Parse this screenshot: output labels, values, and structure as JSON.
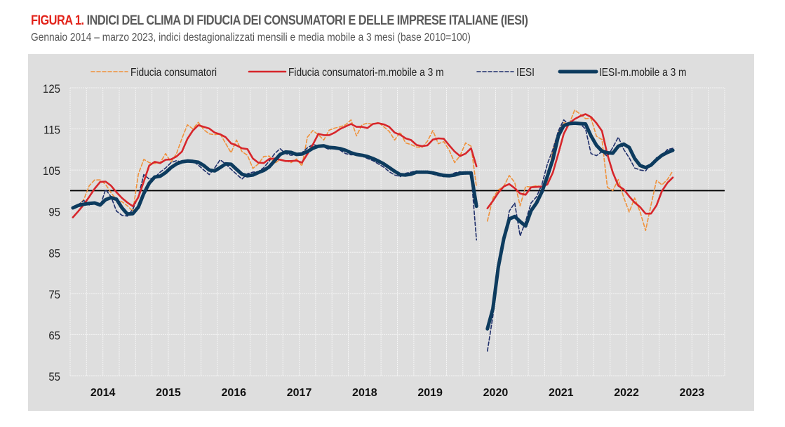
{
  "header": {
    "figure_label": "FIGURA 1.",
    "title": " INDICI DEL CLIMA DI FIDUCIA DEI CONSUMATORI E DELLE IMPRESE ITALIANE (IESI)",
    "subtitle": "Gennaio 2014 – marzo 2023, indici destagionalizzati mensili e media mobile a 3 mesi (base 2010=100)"
  },
  "colors": {
    "figure_label": "#e2231a",
    "consumer": "#f0913a",
    "consumer_ma": "#d7262b",
    "iesi": "#1f2f6b",
    "iesi_ma": "#0d3b5e",
    "background": "#dedede",
    "reference_line": "#000000"
  },
  "chart_data": {
    "type": "line",
    "title": "INDICI DEL CLIMA DI FIDUCIA DEI CONSUMATORI E DELLE IMPRESE ITALIANE (IESI)",
    "x_start": "2014-01",
    "x_end": "2023-03",
    "x_frequency": "monthly",
    "x_tick_labels": [
      "2014",
      "2015",
      "2016",
      "2017",
      "2018",
      "2019",
      "2020",
      "2021",
      "2022",
      "2023"
    ],
    "y_tick_labels": [
      "125",
      "115",
      "105",
      "95",
      "85",
      "75",
      "65",
      "55"
    ],
    "ylim": [
      55,
      125
    ],
    "reference_line": 100,
    "grid": true,
    "legend_position": "top",
    "series": [
      {
        "name": "Fiducia consumatori",
        "style": "dashed",
        "values": [
          95.6,
          96.4,
          97.8,
          101.2,
          102.6,
          102.6,
          101.5,
          99.5,
          97.8,
          97.3,
          96.3,
          95.0,
          104.0,
          107.6,
          106.8,
          106.6,
          106.8,
          109.0,
          106.9,
          109.0,
          112.7,
          116.0,
          115.0,
          116.6,
          114.8,
          113.8,
          113.6,
          113.8,
          111.5,
          109.2,
          112.3,
          109.5,
          108.6,
          105.4,
          106.5,
          108.3,
          108.4,
          106.6,
          107.6,
          107.3,
          106.8,
          107.7,
          106.0,
          113.0,
          114.6,
          113.6,
          112.3,
          114.7,
          115.2,
          115.5,
          116.0,
          117.2,
          113.3,
          116.0,
          116.4,
          116.1,
          116.6,
          115.5,
          114.4,
          112.3,
          114.2,
          111.6,
          111.2,
          110.6,
          110.5,
          112.0,
          114.6,
          111.4,
          111.9,
          109.8,
          106.8,
          108.5,
          111.6,
          110.8,
          100.9,
          null,
          92.6,
          98.2,
          100.2,
          101.0,
          103.7,
          102.0,
          96.3,
          101.0,
          100.9,
          101.2,
          100.9,
          102.3,
          110.0,
          114.2,
          116.5,
          116.2,
          119.6,
          118.6,
          117.5,
          117.6,
          113.2,
          112.4,
          100.8,
          100.0,
          102.7,
          98.3,
          94.8,
          98.2,
          94.8,
          90.3,
          96.5,
          102.5,
          101.4,
          102.7,
          104.8
        ]
      },
      {
        "name": "Fiducia consumatori-m.mobile a 3 m",
        "style": "solid",
        "values": [
          93.5,
          95.0,
          96.6,
          98.5,
          100.5,
          102.1,
          102.2,
          101.2,
          99.6,
          98.2,
          97.1,
          96.2,
          98.4,
          102.2,
          106.1,
          107.0,
          106.7,
          107.5,
          107.6,
          108.3,
          109.5,
          112.6,
          114.6,
          115.9,
          115.5,
          115.1,
          114.1,
          113.7,
          113.0,
          111.5,
          111.0,
          110.3,
          110.1,
          107.8,
          106.8,
          106.7,
          107.7,
          107.8,
          107.5,
          107.2,
          107.2,
          107.3,
          106.8,
          108.9,
          111.2,
          113.8,
          113.5,
          113.5,
          114.1,
          115.0,
          115.6,
          116.2,
          115.5,
          115.5,
          115.2,
          116.2,
          116.4,
          116.1,
          115.5,
          114.1,
          113.6,
          112.7,
          112.3,
          111.1,
          110.8,
          111.0,
          112.4,
          112.7,
          112.6,
          111.0,
          109.5,
          108.4,
          109.0,
          110.3,
          105.9,
          null,
          95.7,
          97.5,
          99.5,
          101.0,
          101.6,
          100.6,
          99.3,
          99.0,
          100.8,
          100.9,
          101.0,
          101.5,
          104.4,
          109.0,
          113.8,
          116.4,
          117.4,
          118.1,
          118.6,
          117.9,
          116.4,
          114.5,
          108.8,
          104.4,
          101.2,
          100.3,
          98.6,
          97.1,
          96.0,
          94.4,
          94.4,
          96.4,
          99.9,
          101.9,
          103.2
        ]
      },
      {
        "name": "IESI",
        "style": "dashed",
        "values": [
          95.8,
          96.6,
          97.6,
          96.5,
          96.8,
          96.2,
          100.3,
          98.5,
          95.0,
          94.0,
          93.8,
          95.5,
          98.6,
          103.9,
          102.8,
          103.2,
          104.5,
          105.5,
          106.8,
          107.3,
          106.9,
          107.3,
          107.2,
          106.2,
          105.0,
          103.9,
          105.5,
          107.5,
          106.5,
          105.2,
          104.0,
          102.8,
          104.1,
          104.5,
          104.6,
          105.6,
          107.2,
          109.0,
          110.2,
          109.0,
          108.6,
          108.8,
          109.2,
          110.4,
          111.2,
          110.9,
          110.6,
          110.0,
          110.7,
          109.8,
          109.0,
          108.7,
          108.8,
          108.4,
          107.8,
          107.3,
          106.5,
          105.7,
          104.6,
          103.8,
          103.4,
          104.2,
          104.5,
          104.8,
          104.3,
          104.5,
          104.0,
          103.6,
          103.4,
          103.7,
          104.3,
          104.6,
          104.0,
          104.2,
          88.0,
          null,
          61.0,
          69.5,
          80.0,
          87.0,
          95.0,
          97.0,
          89.0,
          92.5,
          97.0,
          98.5,
          101.5,
          106.5,
          110.0,
          114.5,
          117.2,
          116.0,
          116.5,
          116.2,
          115.0,
          109.0,
          108.5,
          109.5,
          108.3,
          110.5,
          113.0,
          110.0,
          108.0,
          105.5,
          105.0,
          104.8,
          106.5,
          108.0,
          108.5,
          110.0,
          110.3
        ]
      },
      {
        "name": "IESI-m.mobile a 3 m",
        "style": "solid-thick",
        "values": [
          95.8,
          96.4,
          96.7,
          96.9,
          97.0,
          96.5,
          97.8,
          98.3,
          97.9,
          95.8,
          94.3,
          94.4,
          96.0,
          99.3,
          101.8,
          103.3,
          103.5,
          104.4,
          105.6,
          106.5,
          107.0,
          107.2,
          107.1,
          106.9,
          106.1,
          105.0,
          104.8,
          105.6,
          106.5,
          106.4,
          105.2,
          104.0,
          103.6,
          103.8,
          104.4,
          104.9,
          105.8,
          107.3,
          108.8,
          109.4,
          109.3,
          108.8,
          108.9,
          109.5,
          110.3,
          110.8,
          110.9,
          110.5,
          110.4,
          110.2,
          109.8,
          109.2,
          108.8,
          108.6,
          108.3,
          107.8,
          107.2,
          106.5,
          105.6,
          104.7,
          103.9,
          103.8,
          104.0,
          104.5,
          104.5,
          104.5,
          104.3,
          104.0,
          103.7,
          103.6,
          103.8,
          104.2,
          104.3,
          104.3,
          96.2,
          null,
          66.4,
          71.3,
          81.4,
          88.3,
          93.1,
          93.7,
          92.5,
          91.4,
          95.1,
          97.0,
          99.7,
          103.5,
          107.6,
          113.3,
          115.8,
          116.3,
          116.4,
          116.3,
          116.2,
          113.3,
          111.0,
          109.6,
          109.2,
          109.1,
          110.8,
          111.3,
          110.5,
          107.8,
          106.1,
          105.6,
          106.2,
          107.5,
          108.6,
          109.3,
          109.8
        ]
      }
    ]
  }
}
